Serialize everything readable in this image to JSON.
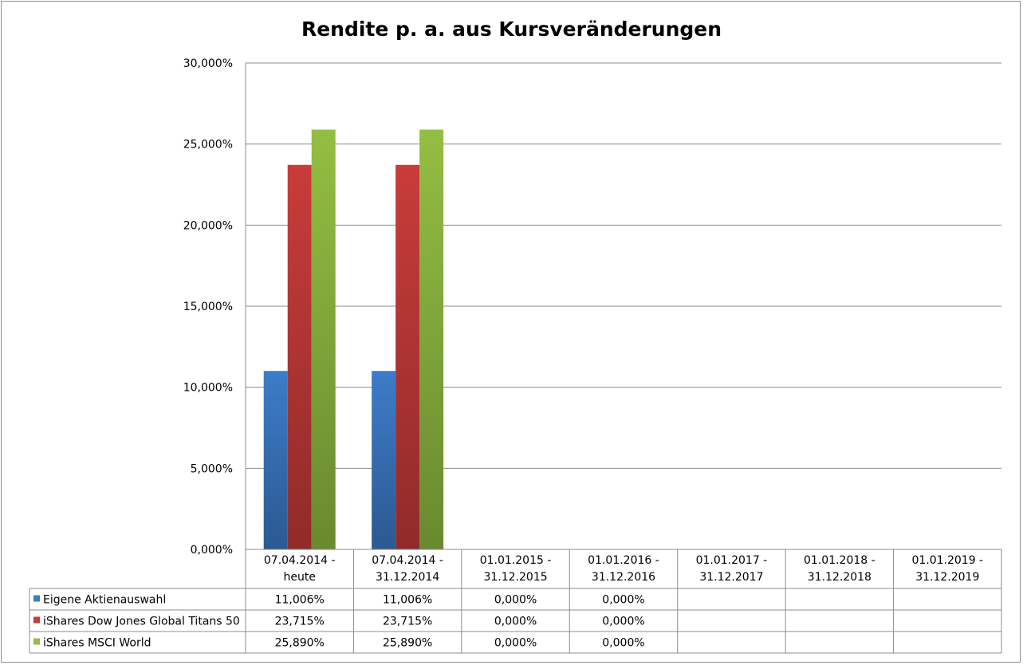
{
  "chart_data": {
    "type": "bar",
    "title": "Rendite p. a. aus Kursveränderungen",
    "xlabel": "",
    "ylabel": "",
    "ylim": [
      0,
      30
    ],
    "y_ticks": [
      "0,000%",
      "5,000%",
      "10,000%",
      "15,000%",
      "20,000%",
      "25,000%",
      "30,000%"
    ],
    "grid": true,
    "legend": "data-table",
    "categories": [
      [
        "07.04.2014 -",
        "heute"
      ],
      [
        "07.04.2014 -",
        "31.12.2014"
      ],
      [
        "01.01.2015 -",
        "31.12.2015"
      ],
      [
        "01.01.2016 -",
        "31.12.2016"
      ],
      [
        "01.01.2017 -",
        "31.12.2017"
      ],
      [
        "01.01.2018 -",
        "31.12.2018"
      ],
      [
        "01.01.2019 -",
        "31.12.2019"
      ]
    ],
    "series": [
      {
        "name": "Eigene Aktienauswahl",
        "color": "#3d7cc9",
        "values": [
          11.006,
          11.006,
          0,
          0,
          null,
          null,
          null
        ],
        "labels": [
          "11,006%",
          "11,006%",
          "0,000%",
          "0,000%",
          "",
          "",
          ""
        ]
      },
      {
        "name": "iShares Dow Jones Global Titans 50",
        "color": "#c83c3a",
        "values": [
          23.715,
          23.715,
          0,
          0,
          null,
          null,
          null
        ],
        "labels": [
          "23,715%",
          "23,715%",
          "0,000%",
          "0,000%",
          "",
          "",
          ""
        ]
      },
      {
        "name": "iShares MSCI World",
        "color": "#93be43",
        "values": [
          25.89,
          25.89,
          0,
          0,
          null,
          null,
          null
        ],
        "labels": [
          "25,890%",
          "25,890%",
          "0,000%",
          "0,000%",
          "",
          "",
          ""
        ]
      }
    ]
  }
}
